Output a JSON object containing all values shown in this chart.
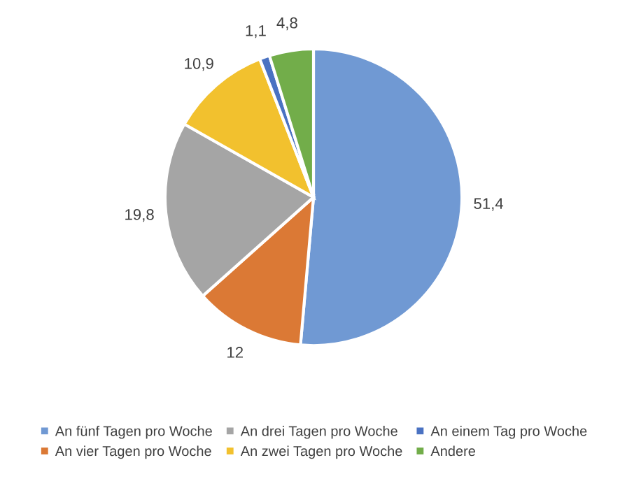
{
  "chart_data": {
    "type": "pie",
    "categories": [
      "An fünf Tagen pro Woche",
      "An vier Tagen pro Woche",
      "An drei Tagen pro Woche",
      "An zwei Tagen pro Woche",
      "An einem Tag pro Woche",
      "Andere"
    ],
    "values": [
      51.4,
      12,
      19.8,
      10.9,
      1.1,
      4.8
    ],
    "value_labels": [
      "51,4",
      "12",
      "19,8",
      "10,9",
      "1,1",
      "4,8"
    ],
    "colors": [
      "#7099d3",
      "#db7935",
      "#a5a5a5",
      "#f2c12e",
      "#4a72c2",
      "#72ad4a"
    ],
    "legend": "bottom"
  }
}
